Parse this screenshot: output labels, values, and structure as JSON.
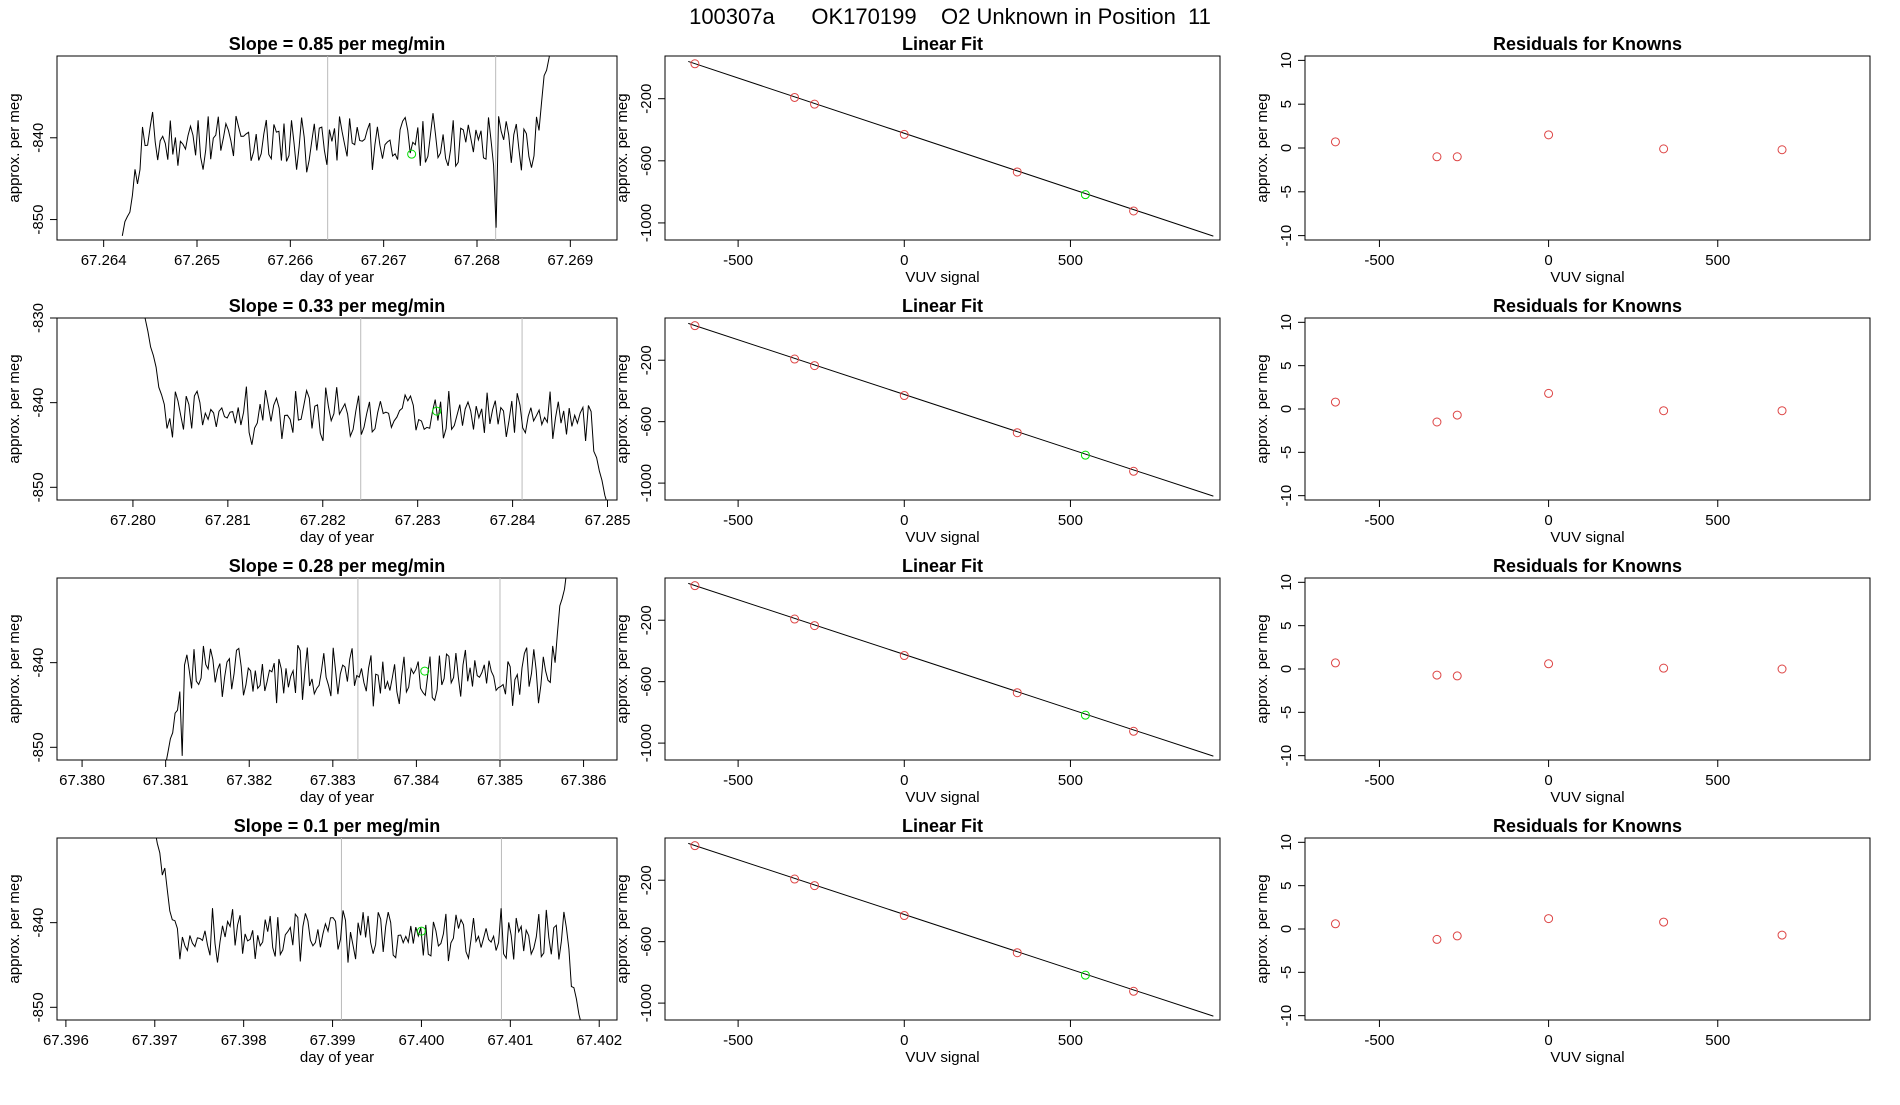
{
  "page_title": "100307a      OK170199    O2 Unknown in Position  11",
  "chart_data": [
    {
      "type": "line",
      "title": "Slope =  0.85  per meg/min",
      "xlabel": "day of year",
      "ylabel": "approx. per meg",
      "xlim": [
        67.2635,
        67.2695
      ],
      "ylim": [
        -852.5,
        -830
      ],
      "x_ticks": [
        "67.264",
        "67.265",
        "67.266",
        "67.267",
        "67.268",
        "67.269"
      ],
      "y_ticks": [
        "-840",
        "-850"
      ],
      "vlines": [
        67.2664,
        67.2682
      ],
      "marker": {
        "x": 67.2673,
        "y": -842,
        "color": "#00dd00"
      },
      "trace": {
        "x_start": 67.2642,
        "x_end": 67.2688,
        "base": -840.5,
        "amp": 2.8,
        "seed": 11,
        "begin": -852,
        "finish": -828,
        "dips": [
          [
            67.2682,
            -851
          ]
        ]
      }
    },
    {
      "type": "scatter",
      "title": "Linear Fit",
      "xlabel": "VUV signal",
      "ylabel": "approx. per meg",
      "xlim": [
        -720,
        950
      ],
      "ylim": [
        -1110,
        75
      ],
      "x_ticks": [
        "-500",
        "0",
        "500"
      ],
      "y_ticks": [
        "-200",
        "-600",
        "-1000"
      ],
      "line": {
        "x": [
          -650,
          930
        ],
        "y": [
          40,
          -1085
        ]
      },
      "points": [
        {
          "x": -630,
          "y": 25
        },
        {
          "x": -330,
          "y": -192
        },
        {
          "x": -270,
          "y": -235
        },
        {
          "x": 0,
          "y": -430
        },
        {
          "x": 340,
          "y": -672
        },
        {
          "x": 545,
          "y": -818,
          "color": "#00dd00"
        },
        {
          "x": 690,
          "y": -923
        }
      ]
    },
    {
      "type": "scatter",
      "title": "Residuals for Knowns",
      "xlabel": "VUV signal",
      "ylabel": "approx. per meg",
      "xlim": [
        -720,
        950
      ],
      "ylim": [
        -10.5,
        10.5
      ],
      "x_ticks": [
        "-500",
        "0",
        "500"
      ],
      "y_ticks": [
        "10",
        "5",
        "0",
        "-5",
        "-10"
      ],
      "points": [
        {
          "x": -630,
          "y": 0.7
        },
        {
          "x": -330,
          "y": -1.0
        },
        {
          "x": -270,
          "y": -1.0
        },
        {
          "x": 0,
          "y": 1.5
        },
        {
          "x": 340,
          "y": -0.1
        },
        {
          "x": 690,
          "y": -0.2
        }
      ]
    },
    {
      "type": "line",
      "title": "Slope =  0.33  per meg/min",
      "xlabel": "day of year",
      "ylabel": "approx. per meg",
      "xlim": [
        67.2792,
        67.2851
      ],
      "ylim": [
        -851.5,
        -830
      ],
      "x_ticks": [
        "67.280",
        "67.281",
        "67.282",
        "67.283",
        "67.284",
        "67.285"
      ],
      "y_ticks": [
        "-830",
        "-840",
        "-850"
      ],
      "vlines": [
        67.2824,
        67.2841
      ],
      "marker": {
        "x": 67.2832,
        "y": -841,
        "color": "#00dd00"
      },
      "trace": {
        "x_start": 67.2801,
        "x_end": 67.285,
        "base": -841.5,
        "amp": 2.6,
        "seed": 23,
        "begin": -829,
        "finish": -852,
        "dips": []
      }
    },
    {
      "type": "scatter",
      "title": "Linear Fit",
      "xlabel": "VUV signal",
      "ylabel": "approx. per meg",
      "xlim": [
        -720,
        950
      ],
      "ylim": [
        -1110,
        75
      ],
      "x_ticks": [
        "-500",
        "0",
        "500"
      ],
      "y_ticks": [
        "-200",
        "-600",
        "-1000"
      ],
      "line": {
        "x": [
          -650,
          930
        ],
        "y": [
          40,
          -1085
        ]
      },
      "points": [
        {
          "x": -630,
          "y": 25
        },
        {
          "x": -330,
          "y": -192
        },
        {
          "x": -270,
          "y": -235
        },
        {
          "x": 0,
          "y": -430
        },
        {
          "x": 340,
          "y": -672
        },
        {
          "x": 545,
          "y": -818,
          "color": "#00dd00"
        },
        {
          "x": 690,
          "y": -923
        }
      ]
    },
    {
      "type": "scatter",
      "title": "Residuals for Knowns",
      "xlabel": "VUV signal",
      "ylabel": "approx. per meg",
      "xlim": [
        -720,
        950
      ],
      "ylim": [
        -10.5,
        10.5
      ],
      "x_ticks": [
        "-500",
        "0",
        "500"
      ],
      "y_ticks": [
        "10",
        "5",
        "0",
        "-5",
        "-10"
      ],
      "points": [
        {
          "x": -630,
          "y": 0.8
        },
        {
          "x": -330,
          "y": -1.5
        },
        {
          "x": -270,
          "y": -0.7
        },
        {
          "x": 0,
          "y": 1.8
        },
        {
          "x": 340,
          "y": -0.2
        },
        {
          "x": 690,
          "y": -0.2
        }
      ]
    },
    {
      "type": "line",
      "title": "Slope =  0.28  per meg/min",
      "xlabel": "day of year",
      "ylabel": "approx. per meg",
      "xlim": [
        67.3797,
        67.3864
      ],
      "ylim": [
        -851.5,
        -830
      ],
      "x_ticks": [
        "67.380",
        "67.381",
        "67.382",
        "67.383",
        "67.384",
        "67.385",
        "67.386"
      ],
      "y_ticks": [
        "-840",
        "-850"
      ],
      "vlines": [
        67.3833,
        67.385
      ],
      "marker": {
        "x": 67.3841,
        "y": -841,
        "color": "#00dd00"
      },
      "trace": {
        "x_start": 67.381,
        "x_end": 67.3858,
        "base": -841.5,
        "amp": 2.7,
        "seed": 37,
        "begin": -852,
        "finish": -829,
        "dips": [
          [
            67.3812,
            -851
          ]
        ]
      }
    },
    {
      "type": "scatter",
      "title": "Linear Fit",
      "xlabel": "VUV signal",
      "ylabel": "approx. per meg",
      "xlim": [
        -720,
        950
      ],
      "ylim": [
        -1110,
        75
      ],
      "x_ticks": [
        "-500",
        "0",
        "500"
      ],
      "y_ticks": [
        "-200",
        "-600",
        "-1000"
      ],
      "line": {
        "x": [
          -650,
          930
        ],
        "y": [
          40,
          -1085
        ]
      },
      "points": [
        {
          "x": -630,
          "y": 25
        },
        {
          "x": -330,
          "y": -192
        },
        {
          "x": -270,
          "y": -235
        },
        {
          "x": 0,
          "y": -430
        },
        {
          "x": 340,
          "y": -672
        },
        {
          "x": 545,
          "y": -818,
          "color": "#00dd00"
        },
        {
          "x": 690,
          "y": -923
        }
      ]
    },
    {
      "type": "scatter",
      "title": "Residuals for Knowns",
      "xlabel": "VUV signal",
      "ylabel": "approx. per meg",
      "xlim": [
        -720,
        950
      ],
      "ylim": [
        -10.5,
        10.5
      ],
      "x_ticks": [
        "-500",
        "0",
        "500"
      ],
      "y_ticks": [
        "10",
        "5",
        "0",
        "-5",
        "-10"
      ],
      "points": [
        {
          "x": -630,
          "y": 0.7
        },
        {
          "x": -330,
          "y": -0.7
        },
        {
          "x": -270,
          "y": -0.8
        },
        {
          "x": 0,
          "y": 0.6
        },
        {
          "x": 340,
          "y": 0.1
        },
        {
          "x": 690,
          "y": 0.0
        }
      ]
    },
    {
      "type": "line",
      "title": "Slope =  0.1  per meg/min",
      "xlabel": "day of year",
      "ylabel": "approx. per meg",
      "xlim": [
        67.3959,
        67.4022
      ],
      "ylim": [
        -851.5,
        -830
      ],
      "x_ticks": [
        "67.396",
        "67.397",
        "67.398",
        "67.399",
        "67.400",
        "67.401",
        "67.402"
      ],
      "y_ticks": [
        "-840",
        "-850"
      ],
      "vlines": [
        67.3991,
        67.4009
      ],
      "marker": {
        "x": 67.4,
        "y": -841,
        "color": "#00dd00"
      },
      "trace": {
        "x_start": 67.397,
        "x_end": 67.4018,
        "base": -841.5,
        "amp": 2.5,
        "seed": 53,
        "begin": -829,
        "finish": -852,
        "dips": []
      }
    },
    {
      "type": "scatter",
      "title": "Linear Fit",
      "xlabel": "VUV signal",
      "ylabel": "approx. per meg",
      "xlim": [
        -720,
        950
      ],
      "ylim": [
        -1110,
        75
      ],
      "x_ticks": [
        "-500",
        "0",
        "500"
      ],
      "y_ticks": [
        "-200",
        "-600",
        "-1000"
      ],
      "line": {
        "x": [
          -650,
          930
        ],
        "y": [
          40,
          -1085
        ]
      },
      "points": [
        {
          "x": -630,
          "y": 25
        },
        {
          "x": -330,
          "y": -192
        },
        {
          "x": -270,
          "y": -235
        },
        {
          "x": 0,
          "y": -430
        },
        {
          "x": 340,
          "y": -672
        },
        {
          "x": 545,
          "y": -818,
          "color": "#00dd00"
        },
        {
          "x": 690,
          "y": -923
        }
      ]
    },
    {
      "type": "scatter",
      "title": "Residuals for Knowns",
      "xlabel": "VUV signal",
      "ylabel": "approx. per meg",
      "xlim": [
        -720,
        950
      ],
      "ylim": [
        -10.5,
        10.5
      ],
      "x_ticks": [
        "-500",
        "0",
        "500"
      ],
      "y_ticks": [
        "10",
        "5",
        "0",
        "-5",
        "-10"
      ],
      "points": [
        {
          "x": -630,
          "y": 0.6
        },
        {
          "x": -330,
          "y": -1.2
        },
        {
          "x": -270,
          "y": -0.8
        },
        {
          "x": 0,
          "y": 1.2
        },
        {
          "x": 340,
          "y": 0.8
        },
        {
          "x": 690,
          "y": -0.7
        }
      ]
    }
  ]
}
